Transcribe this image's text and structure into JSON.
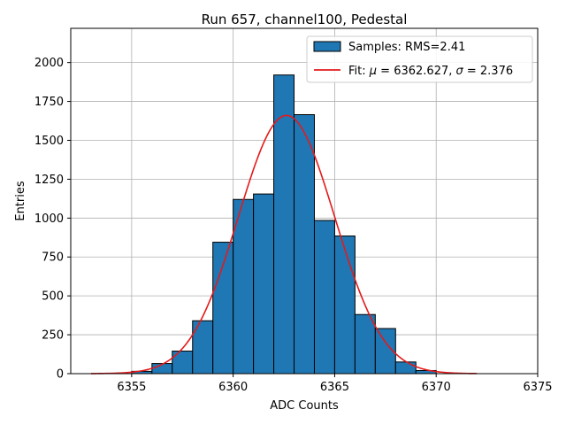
{
  "chart_data": {
    "type": "bar",
    "title": "Run 657, channel100, Pedestal",
    "xlabel": "ADC Counts",
    "ylabel": "Entries",
    "xlim": [
      6352,
      6375
    ],
    "ylim": [
      0,
      2220
    ],
    "xticks": [
      6355,
      6360,
      6365,
      6370,
      6375
    ],
    "yticks": [
      0,
      250,
      500,
      750,
      1000,
      1250,
      1500,
      1750,
      2000
    ],
    "grid": true,
    "legend_position": "top-right",
    "histogram": {
      "name": "Samples: RMS=2.41",
      "bin_edges": [
        6355,
        6356,
        6357,
        6358,
        6359,
        6360,
        6361,
        6362,
        6363,
        6364,
        6365,
        6366,
        6367,
        6368,
        6369,
        6370
      ],
      "values": [
        15,
        65,
        145,
        340,
        845,
        1120,
        1155,
        1920,
        1665,
        985,
        885,
        380,
        290,
        75,
        20
      ],
      "color": "#1f77b4",
      "edge_color": "#000000"
    },
    "fit": {
      "name_prefix": "Fit: ",
      "mu_symbol": "μ",
      "sigma_symbol": "σ",
      "mu_text": " = 6362.627, ",
      "sigma_text": " = 2.376",
      "mu": 6362.627,
      "sigma": 2.376,
      "amplitude": 1660,
      "x_range": [
        6353,
        6372
      ],
      "color": "#e41a1c"
    }
  }
}
